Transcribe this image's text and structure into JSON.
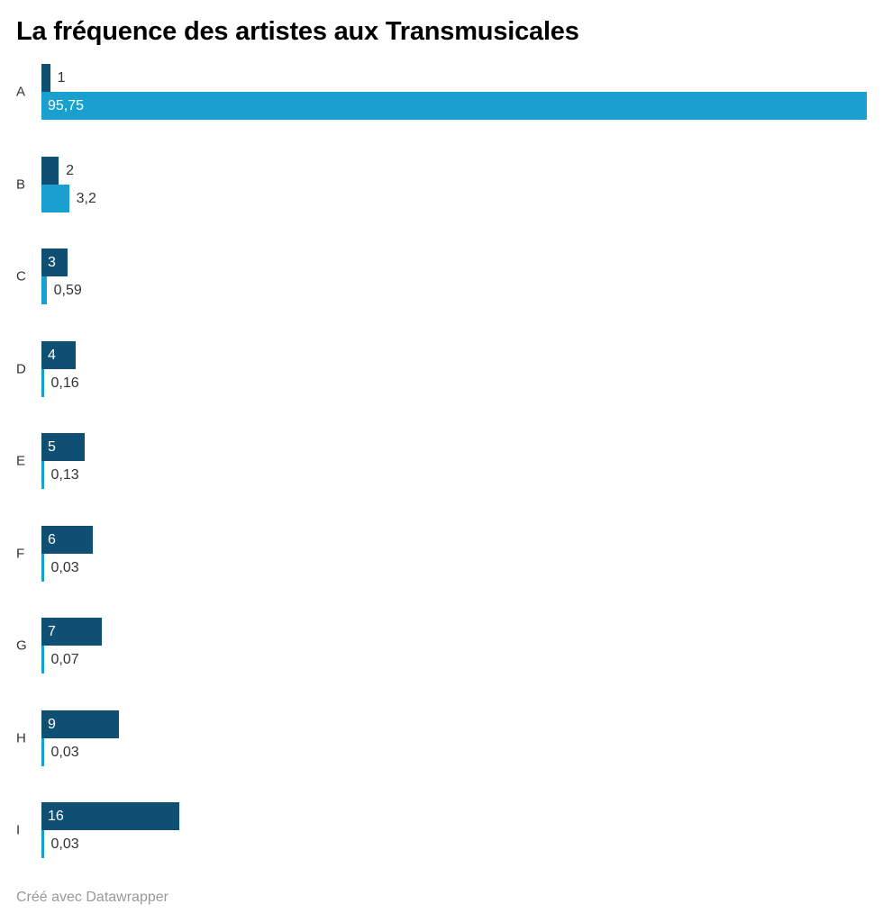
{
  "title": "La fréquence des artistes aux Transmusicales",
  "footer": {
    "text": "Créé avec Datawrapper"
  },
  "colors": {
    "series_dark": "#0e4f73",
    "series_light": "#1aa0cf",
    "value_label_inside": "#ffffff",
    "value_label_outside": "#333333",
    "category_label": "#333333",
    "title": "#000000",
    "footer": "#999999",
    "background": "#ffffff"
  },
  "chart_data": {
    "type": "bar",
    "orientation": "horizontal",
    "title": "La fréquence des artistes aux Transmusicales",
    "grid": false,
    "legend": false,
    "value_format": "comma-decimal",
    "xlim": [
      0,
      95.75
    ],
    "categories": [
      "A",
      "B",
      "C",
      "D",
      "E",
      "F",
      "G",
      "H",
      "I"
    ],
    "series": [
      {
        "name": "series-1",
        "color": "#0e4f73",
        "values": [
          1,
          2,
          3,
          4,
          5,
          6,
          7,
          9,
          16
        ],
        "labels": [
          "1",
          "2",
          "3",
          "4",
          "5",
          "6",
          "7",
          "9",
          "16"
        ]
      },
      {
        "name": "series-2",
        "color": "#1aa0cf",
        "values": [
          95.75,
          3.2,
          0.59,
          0.16,
          0.13,
          0.03,
          0.07,
          0.03,
          0.03
        ],
        "labels": [
          "95,75",
          "3,2",
          "0,59",
          "0,16",
          "0,13",
          "0,03",
          "0,07",
          "0,03",
          "0,03"
        ]
      }
    ],
    "credit": "Créé avec Datawrapper"
  }
}
